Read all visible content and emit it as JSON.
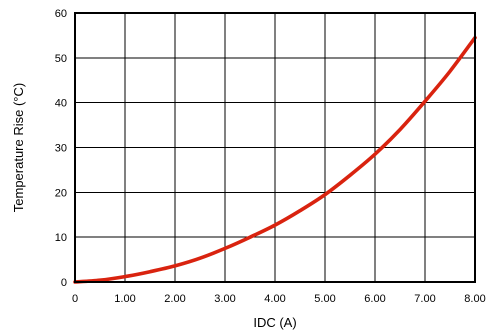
{
  "chart_data": {
    "type": "line",
    "title": "",
    "xlabel": "IDC (A)",
    "ylabel": "Temperature Rise (°C)",
    "xlim": [
      0,
      8
    ],
    "ylim": [
      0,
      60
    ],
    "x_ticks": [
      0,
      1,
      2,
      3,
      4,
      5,
      6,
      7,
      8
    ],
    "x_tick_labels": [
      "0",
      "1.00",
      "2.00",
      "3.00",
      "4.00",
      "5.00",
      "6.00",
      "7.00",
      "8.00"
    ],
    "y_ticks": [
      0,
      10,
      20,
      30,
      40,
      50,
      60
    ],
    "y_tick_labels": [
      "0",
      "10",
      "20",
      "30",
      "40",
      "50",
      "60"
    ],
    "grid": true,
    "legend": "none",
    "series": [
      {
        "color": "#d9230f",
        "x": [
          0,
          0.5,
          1,
          1.5,
          2,
          2.5,
          3,
          3.5,
          4,
          4.5,
          5,
          5.5,
          6,
          6.5,
          7,
          7.5,
          8
        ],
        "y": [
          0,
          0.4,
          1.2,
          2.3,
          3.6,
          5.3,
          7.5,
          10,
          12.7,
          15.9,
          19.5,
          23.8,
          28.5,
          34,
          40.3,
          47,
          54.5
        ]
      }
    ]
  }
}
